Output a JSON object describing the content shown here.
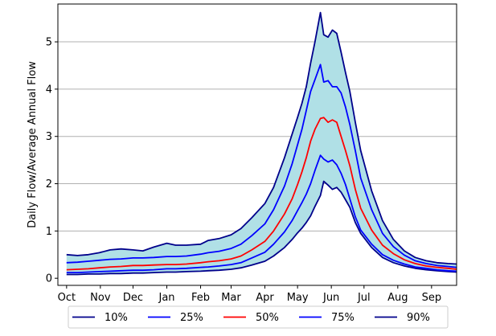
{
  "chart_data": {
    "type": "area",
    "title": "",
    "xlabel": "",
    "ylabel": "Daily Flow/Average Annual Flow",
    "x_ticks": [
      "Oct",
      "Nov",
      "Dec",
      "Jan",
      "Feb",
      "Mar",
      "Apr",
      "May",
      "Jun",
      "Jul",
      "Aug",
      "Sep"
    ],
    "y_ticks": [
      0,
      1,
      2,
      3,
      4,
      5
    ],
    "xlim": [
      -8,
      358
    ],
    "ylim": [
      -0.15,
      5.8
    ],
    "grid": "horizontal",
    "legend_position": "bottom",
    "fill": {
      "between": [
        "10%",
        "90%"
      ],
      "color": "#b0e0e6"
    },
    "x": [
      0,
      10,
      20,
      30,
      40,
      50,
      61,
      70,
      80,
      92,
      100,
      110,
      123,
      130,
      140,
      151,
      160,
      170,
      182,
      190,
      200,
      207,
      212,
      216,
      220,
      224,
      228,
      233,
      236,
      240,
      244,
      248,
      252,
      256,
      260,
      265,
      270,
      280,
      290,
      300,
      310,
      320,
      330,
      340,
      350,
      358
    ],
    "series": [
      {
        "name": "10%",
        "color": "#00008b",
        "values": [
          0.08,
          0.08,
          0.09,
          0.09,
          0.1,
          0.1,
          0.11,
          0.11,
          0.12,
          0.13,
          0.13,
          0.14,
          0.15,
          0.16,
          0.17,
          0.19,
          0.22,
          0.28,
          0.36,
          0.47,
          0.65,
          0.82,
          0.96,
          1.06,
          1.18,
          1.32,
          1.52,
          1.75,
          2.05,
          1.97,
          1.88,
          1.92,
          1.82,
          1.66,
          1.5,
          1.18,
          0.95,
          0.65,
          0.44,
          0.33,
          0.26,
          0.21,
          0.18,
          0.16,
          0.14,
          0.13
        ]
      },
      {
        "name": "25%",
        "color": "#0000ff",
        "values": [
          0.12,
          0.12,
          0.13,
          0.14,
          0.15,
          0.16,
          0.17,
          0.17,
          0.18,
          0.2,
          0.2,
          0.21,
          0.23,
          0.24,
          0.26,
          0.29,
          0.33,
          0.43,
          0.55,
          0.72,
          0.98,
          1.22,
          1.43,
          1.6,
          1.78,
          2.0,
          2.28,
          2.6,
          2.52,
          2.46,
          2.5,
          2.4,
          2.22,
          1.98,
          1.68,
          1.3,
          1.02,
          0.72,
          0.5,
          0.38,
          0.3,
          0.24,
          0.21,
          0.18,
          0.16,
          0.15
        ]
      },
      {
        "name": "50%",
        "color": "#ff0000",
        "values": [
          0.18,
          0.19,
          0.2,
          0.22,
          0.24,
          0.25,
          0.27,
          0.27,
          0.28,
          0.29,
          0.29,
          0.3,
          0.33,
          0.35,
          0.37,
          0.41,
          0.47,
          0.6,
          0.78,
          1.0,
          1.36,
          1.68,
          1.98,
          2.25,
          2.55,
          2.9,
          3.15,
          3.38,
          3.4,
          3.3,
          3.35,
          3.3,
          3.0,
          2.7,
          2.38,
          1.88,
          1.48,
          1.02,
          0.7,
          0.52,
          0.39,
          0.31,
          0.26,
          0.23,
          0.21,
          0.19
        ]
      },
      {
        "name": "75%",
        "color": "#0000ff",
        "values": [
          0.33,
          0.34,
          0.36,
          0.38,
          0.4,
          0.41,
          0.43,
          0.43,
          0.44,
          0.46,
          0.46,
          0.47,
          0.51,
          0.54,
          0.57,
          0.63,
          0.72,
          0.9,
          1.15,
          1.45,
          1.95,
          2.42,
          2.82,
          3.15,
          3.55,
          3.95,
          4.2,
          4.52,
          4.15,
          4.18,
          4.05,
          4.05,
          3.92,
          3.62,
          3.25,
          2.7,
          2.12,
          1.45,
          0.95,
          0.67,
          0.49,
          0.37,
          0.31,
          0.27,
          0.25,
          0.23
        ]
      },
      {
        "name": "90%",
        "color": "#00008b",
        "values": [
          0.5,
          0.48,
          0.5,
          0.54,
          0.6,
          0.62,
          0.6,
          0.58,
          0.66,
          0.74,
          0.7,
          0.7,
          0.72,
          0.8,
          0.84,
          0.92,
          1.05,
          1.28,
          1.58,
          1.92,
          2.55,
          3.05,
          3.4,
          3.7,
          4.05,
          4.55,
          5.0,
          5.62,
          5.15,
          5.1,
          5.25,
          5.18,
          4.78,
          4.35,
          3.95,
          3.3,
          2.7,
          1.85,
          1.22,
          0.82,
          0.58,
          0.44,
          0.37,
          0.33,
          0.31,
          0.3
        ]
      }
    ]
  }
}
